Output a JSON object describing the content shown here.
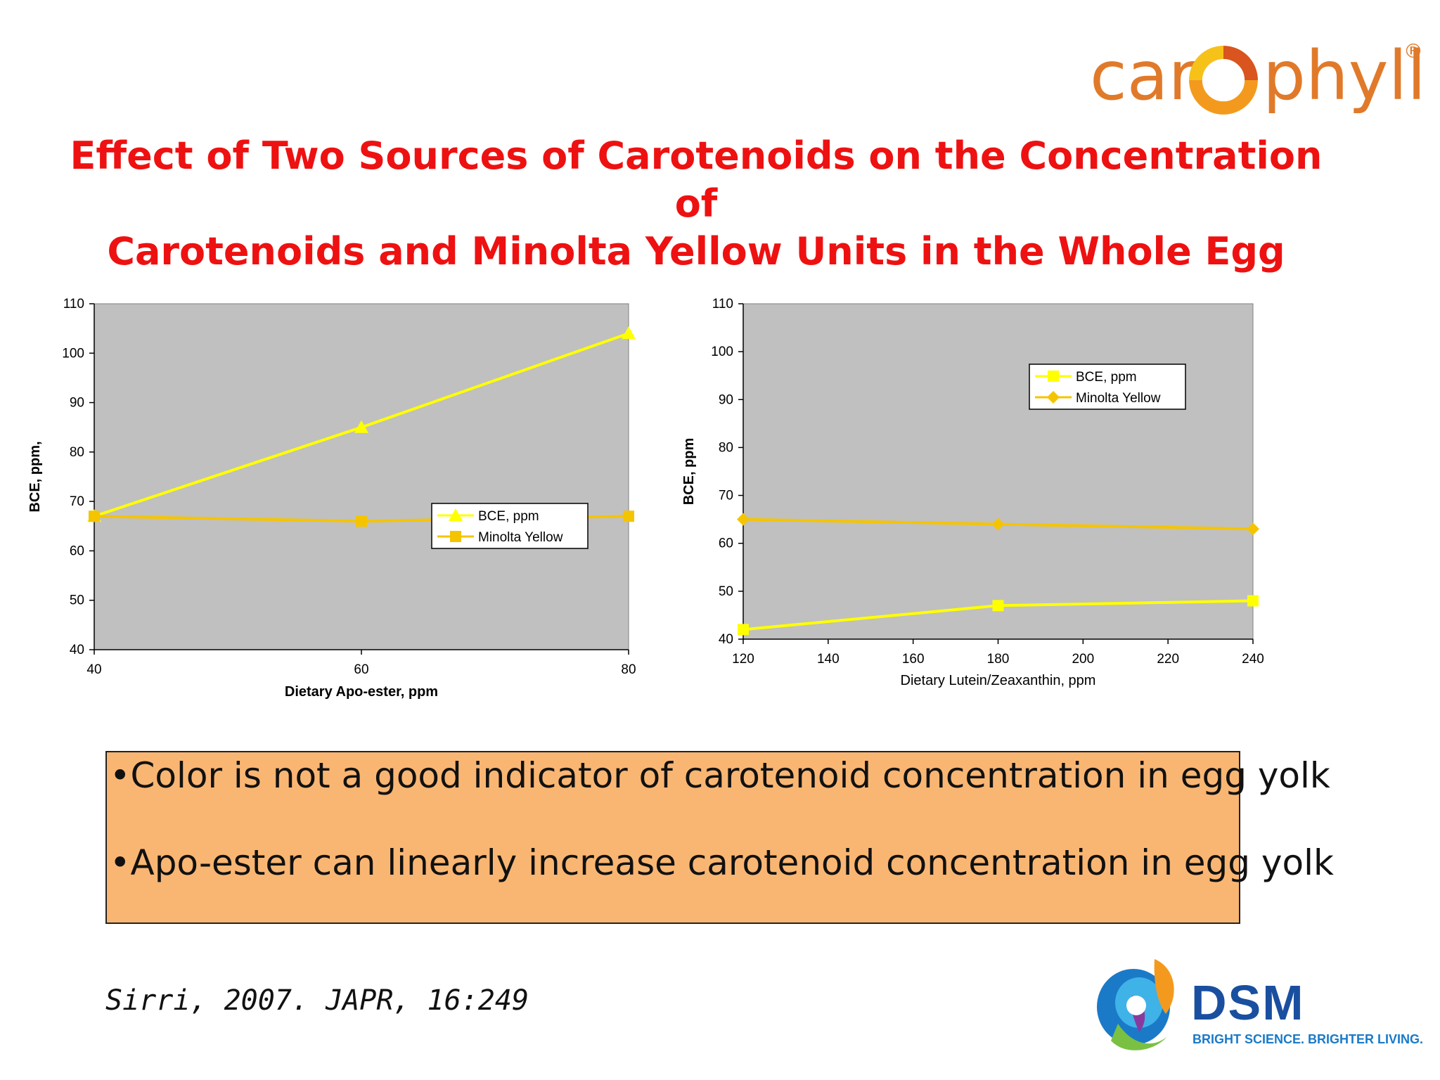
{
  "brand": {
    "carophyll_text_a": "car",
    "carophyll_text_b": "phyll",
    "registered": "®",
    "accent": "#e07a2a"
  },
  "title": {
    "line1": "Effect of Two Sources of Carotenoids on the Concentration of",
    "line2": "Carotenoids and Minolta Yellow Units in the Whole Egg",
    "color": "#ee1111"
  },
  "chart_data": [
    {
      "type": "line",
      "title": "",
      "xlabel": "Dietary Apo-ester, ppm",
      "ylabel": "BCE, ppm,",
      "xlim": [
        40,
        80
      ],
      "ylim": [
        40,
        110
      ],
      "xticks": [
        40,
        60,
        80
      ],
      "yticks": [
        40,
        50,
        60,
        70,
        80,
        90,
        100,
        110
      ],
      "grid": false,
      "plot_background": "#c0c0c0",
      "legend_placement": "center-right",
      "series": [
        {
          "name": "BCE, ppm",
          "x": [
            40,
            60,
            80
          ],
          "values": [
            67,
            85,
            104
          ],
          "color": "#ffff00",
          "marker": "triangle"
        },
        {
          "name": "Minolta Yellow",
          "x": [
            40,
            60,
            80
          ],
          "values": [
            67,
            66,
            67
          ],
          "color": "#f5c400",
          "marker": "square"
        }
      ]
    },
    {
      "type": "line",
      "title": "",
      "xlabel": "Dietary Lutein/Zeaxanthin, ppm",
      "ylabel": "BCE, ppm",
      "xlim": [
        120,
        240
      ],
      "ylim": [
        40,
        110
      ],
      "xticks": [
        120,
        140,
        160,
        180,
        200,
        220,
        240
      ],
      "yticks": [
        40,
        50,
        60,
        70,
        80,
        90,
        100,
        110
      ],
      "grid": false,
      "plot_background": "#c0c0c0",
      "legend_placement": "top-right",
      "series": [
        {
          "name": "BCE, ppm",
          "x": [
            120,
            180,
            240
          ],
          "values": [
            42,
            47,
            48
          ],
          "color": "#ffff00",
          "marker": "square"
        },
        {
          "name": "Minolta Yellow",
          "x": [
            120,
            180,
            240
          ],
          "values": [
            65,
            64,
            63
          ],
          "color": "#f5c400",
          "marker": "diamond"
        }
      ]
    }
  ],
  "notes": [
    "•Color is not a good indicator of carotenoid concentration in egg yolk",
    "•Apo-ester can linearly increase carotenoid concentration in egg yolk"
  ],
  "citation": "Sirri, 2007. JAPR, 16:249",
  "dsm": {
    "name": "DSM",
    "tagline": "BRIGHT SCIENCE. BRIGHTER LIVING."
  }
}
